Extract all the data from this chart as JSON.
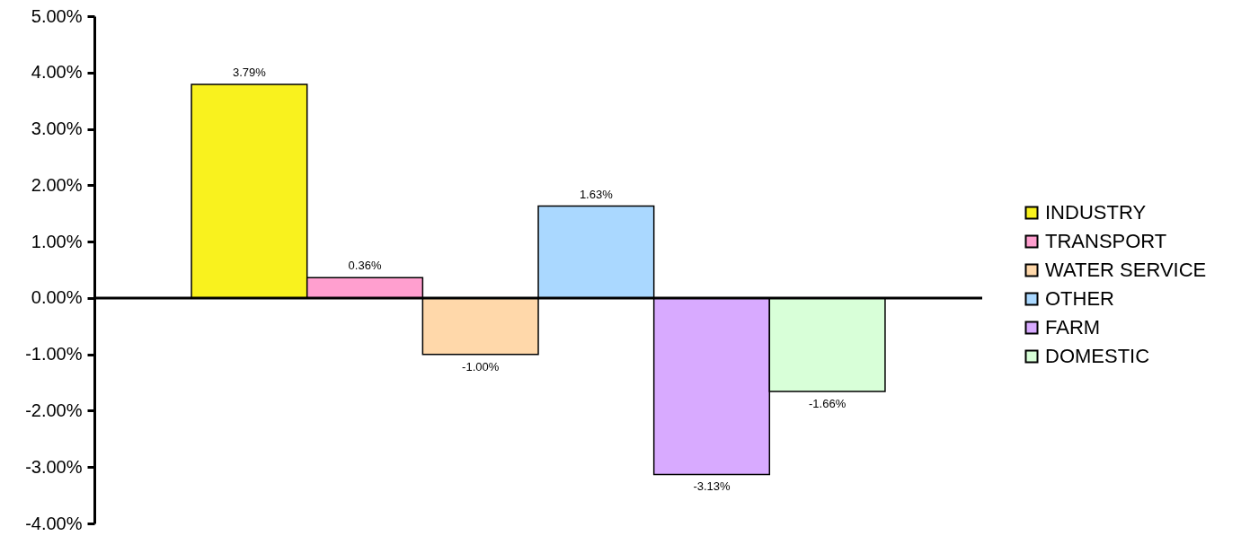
{
  "chart_data": {
    "type": "bar",
    "categories": [
      null
    ],
    "series": [
      {
        "name": "INDUSTRY",
        "color": "#f9f21e",
        "values": [
          3.79
        ],
        "value_labels": [
          "3.79%"
        ]
      },
      {
        "name": "TRANSPORT",
        "color": "#ff9fcf",
        "values": [
          0.36
        ],
        "value_labels": [
          "0.36%"
        ]
      },
      {
        "name": "WATER SERVICE",
        "color": "#ffd8aa",
        "values": [
          -1.0
        ],
        "value_labels": [
          "-1.00%"
        ]
      },
      {
        "name": "OTHER",
        "color": "#aad8ff",
        "values": [
          1.63
        ],
        "value_labels": [
          "1.63%"
        ]
      },
      {
        "name": "FARM",
        "color": "#d8aaff",
        "values": [
          -3.13
        ],
        "value_labels": [
          "-3.13%"
        ]
      },
      {
        "name": "DOMESTIC",
        "color": "#d8ffd8",
        "values": [
          -1.66
        ],
        "value_labels": [
          "-1.66%"
        ]
      }
    ],
    "ylim": [
      -4,
      5
    ],
    "yticks": [
      {
        "value": -4,
        "label": "-4.00%"
      },
      {
        "value": -3,
        "label": "-3.00%"
      },
      {
        "value": -2,
        "label": "-2.00%"
      },
      {
        "value": -1,
        "label": "-1.00%"
      },
      {
        "value": 0,
        "label": "0.00%"
      },
      {
        "value": 1,
        "label": "1.00%"
      },
      {
        "value": 2,
        "label": "2.00%"
      },
      {
        "value": 3,
        "label": "3.00%"
      },
      {
        "value": 4,
        "label": "4.00%"
      },
      {
        "value": 5,
        "label": "5.00%"
      }
    ],
    "legend": "right"
  }
}
